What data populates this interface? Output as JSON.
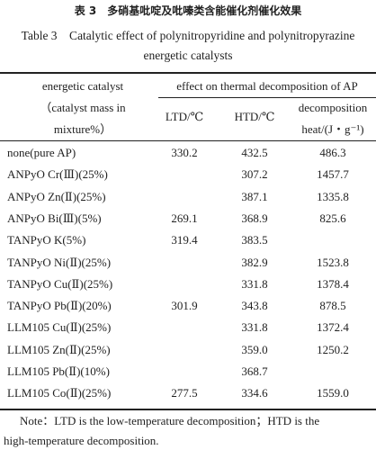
{
  "title_cn": "表 3　多硝基吡啶及吡嗪类含能催化剂催化效果",
  "title_en": [
    "Table 3　Catalytic effect of polynitropyridine and polynitropyrazine",
    "energetic catalysts"
  ],
  "table": {
    "header": {
      "catalyst": [
        "energetic catalyst",
        "（catalyst mass in",
        "mixture%）"
      ],
      "group": "effect on thermal decomposition of AP",
      "ltd": "LTD/℃",
      "htd": "HTD/℃",
      "heat": [
        "decomposition",
        "heat/(J・g⁻¹)"
      ]
    },
    "rows": [
      [
        "none(pure AP)",
        "330.2",
        "432.5",
        "486.3"
      ],
      [
        "ANPyO Cr(Ⅲ)(25%)",
        null,
        "307.2",
        "1457.7"
      ],
      [
        "ANPyO Zn(Ⅱ)(25%)",
        null,
        "387.1",
        "1335.8"
      ],
      [
        "ANPyO Bi(Ⅲ)(5%)",
        "269.1",
        "368.9",
        "825.6"
      ],
      [
        "TANPyO K(5%)",
        "319.4",
        "383.5",
        null
      ],
      [
        "TANPyO Ni(Ⅱ)(25%)",
        null,
        "382.9",
        "1523.8"
      ],
      [
        "TANPyO Cu(Ⅱ)(25%)",
        null,
        "331.8",
        "1378.4"
      ],
      [
        "TANPyO Pb(Ⅱ)(20%)",
        "301.9",
        "343.8",
        "878.5"
      ],
      [
        "LLM105 Cu(Ⅱ)(25%)",
        null,
        "331.8",
        "1372.4"
      ],
      [
        "LLM105 Zn(Ⅱ)(25%)",
        null,
        "359.0",
        "1250.2"
      ],
      [
        "LLM105 Pb(Ⅱ)(10%)",
        null,
        "368.7",
        null
      ],
      [
        "LLM105 Co(Ⅱ)(25%)",
        "277.5",
        "334.6",
        "1559.0"
      ]
    ]
  },
  "note": [
    "Note：LTD is the low-temperature decomposition；HTD is the",
    "high-temperature decomposition."
  ]
}
